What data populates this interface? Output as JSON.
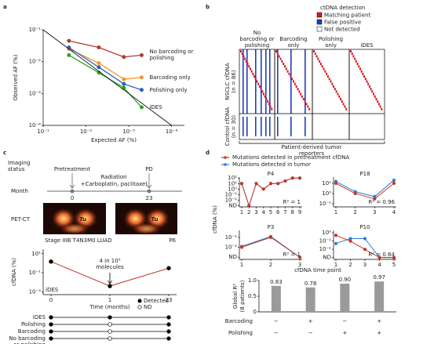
{
  "panel_labels": [
    "a",
    "b",
    "c",
    "d"
  ],
  "chart_data": [
    {
      "type": "line",
      "xlabel": "Expected AF (%)",
      "ylabel": "Observed AF (%)",
      "log_x": true,
      "log_y": true,
      "x": [
        0.025,
        0.005,
        0.0013,
        0.0005
      ],
      "xlim": [
        0.1,
        5e-05
      ],
      "xticks": [
        {
          "value": 0.1,
          "label": "10⁻¹"
        },
        {
          "value": 0.01,
          "label": "10⁻²"
        },
        {
          "value": 0.001,
          "label": "10⁻³"
        },
        {
          "value": 0.0001,
          "label": "10⁻⁴"
        }
      ],
      "ylim": [
        0.0001,
        0.1
      ],
      "yticks": [
        {
          "value": 0.0001,
          "label": "10⁻⁴"
        },
        {
          "value": 0.001,
          "label": "10⁻³"
        },
        {
          "value": 0.01,
          "label": "10⁻²"
        },
        {
          "value": 0.1,
          "label": "10⁻¹"
        }
      ],
      "series": [
        {
          "name": "No barcoding or polishing",
          "color": "#b33a2e",
          "values": [
            0.045,
            0.028,
            0.014,
            0.016
          ]
        },
        {
          "name": "Barcoding only",
          "color": "#f2962f",
          "values": [
            0.025,
            0.009,
            0.0028,
            0.0032
          ]
        },
        {
          "name": "Polishing only",
          "color": "#2a62b8",
          "values": [
            0.028,
            0.0067,
            0.002,
            0.0013
          ]
        },
        {
          "name": "iDES",
          "color": "#2ca02c",
          "values": [
            0.016,
            0.0045,
            0.0015,
            0.00037
          ]
        }
      ]
    },
    {
      "type": "line",
      "ylabel": "cfDNA (%)",
      "xlabel": "Time (months)",
      "log_y": true,
      "categories": [
        "0",
        "1",
        "23"
      ],
      "ylim": [
        0.0005,
        30
      ],
      "yticks": [
        {
          "value": 10,
          "label": "10¹"
        },
        {
          "value": 0.1,
          "label": "10⁻¹"
        },
        {
          "value": 0.001,
          "label": "10⁻³"
        }
      ],
      "series": [
        {
          "name": "iDES",
          "color": "#c0392b",
          "values": [
            1.5,
            0.004,
            0.3
          ]
        }
      ],
      "annotation": "4 in 10⁵ molecules",
      "legend": [
        "Detected",
        "ND"
      ]
    },
    {
      "type": "line",
      "title": "P4",
      "log_y": true,
      "categories": [
        "1",
        "2",
        "3",
        "4",
        "5",
        "6",
        "7",
        "8",
        "9"
      ],
      "ylim": [
        0.0006,
        150
      ],
      "yticks": [
        {
          "value": 100,
          "label": "10²"
        },
        {
          "value": 10,
          "label": "10¹"
        },
        {
          "value": 1,
          "label": "10⁰"
        },
        {
          "value": 0.1,
          "label": "10⁻¹"
        },
        {
          "value": 0.01,
          "label": "10⁻²"
        },
        {
          "value": 0.001,
          "label": "ND"
        }
      ],
      "series": [
        {
          "color": "#2e7bd6",
          "values": [
            10,
            0.001,
            10,
            1,
            10,
            10,
            30,
            100,
            100
          ]
        },
        {
          "color": "#c0392b",
          "values": [
            10,
            0.001,
            10,
            1,
            10,
            10,
            30,
            100,
            100
          ]
        }
      ],
      "annotation": "R² = 1"
    },
    {
      "type": "line",
      "title": "P18",
      "log_y": true,
      "categories": [
        "1",
        "2",
        "3",
        "4"
      ],
      "ylim": [
        0.05,
        40
      ],
      "yticks": [
        {
          "value": 10,
          "label": "10¹"
        },
        {
          "value": 1,
          "label": "10⁰"
        },
        {
          "value": 0.1,
          "label": "10⁻¹"
        }
      ],
      "series": [
        {
          "color": "#2e7bd6",
          "values": [
            15,
            1.5,
            0.5,
            20
          ]
        },
        {
          "color": "#c0392b",
          "values": [
            10,
            1,
            0.3,
            10
          ]
        }
      ],
      "annotation": "R² = 0.96"
    },
    {
      "type": "line",
      "title": "P3",
      "log_y": true,
      "categories": [
        "1",
        "2",
        "3"
      ],
      "ylim": [
        0.0006,
        0.5
      ],
      "yticks": [
        {
          "value": 0.1,
          "label": "10⁻¹"
        },
        {
          "value": 0.01,
          "label": "10⁻²"
        },
        {
          "value": 0.001,
          "label": "ND"
        }
      ],
      "series": [
        {
          "color": "#2e7bd6",
          "values": [
            0.012,
            0.12,
            0.001
          ]
        },
        {
          "color": "#c0392b",
          "values": [
            0.01,
            0.1,
            0.001
          ]
        }
      ],
      "annotation": "R² = 1"
    },
    {
      "type": "line",
      "title": "P10",
      "log_y": true,
      "categories": [
        "1",
        "2",
        "3",
        "4",
        "5"
      ],
      "ylim": [
        0.0006,
        2
      ],
      "yticks": [
        {
          "value": 1,
          "label": "10⁰"
        },
        {
          "value": 0.1,
          "label": "10⁻¹"
        },
        {
          "value": 0.01,
          "label": "10⁻²"
        },
        {
          "value": 0.001,
          "label": "ND"
        }
      ],
      "series": [
        {
          "color": "#2e7bd6",
          "values": [
            0.05,
            0.2,
            0.2,
            0.001,
            0.001
          ]
        },
        {
          "color": "#c0392b",
          "values": [
            0.5,
            0.1,
            0.01,
            0.001,
            0.001
          ]
        }
      ],
      "annotation": "R² = 0.64"
    },
    {
      "type": "bar",
      "ylabel": "Global R²",
      "ylabel_note": "(8 patients)",
      "values": [
        0.83,
        0.78,
        0.9,
        0.97
      ],
      "value_labels": [
        "0.83",
        "0.78",
        "0.90",
        "0.97"
      ],
      "color": "#9a9a9a",
      "ylim": [
        0,
        1
      ],
      "yticks": [
        0,
        0.5,
        {
          "value": 1,
          "label": "1.0"
        }
      ],
      "rows": [
        {
          "label": "Barcoding",
          "marks": [
            "−",
            "+",
            "−",
            "+"
          ]
        },
        {
          "label": "Polishing",
          "marks": [
            "−",
            "−",
            "+",
            "+"
          ]
        }
      ]
    }
  ],
  "panel_b": {
    "legend_title": "ctDNA detection",
    "legend": [
      {
        "label": "Matching patient",
        "color": "#d7191c"
      },
      {
        "label": "False positive",
        "color": "#1f3fbf"
      },
      {
        "label": "Not detected",
        "color": "#ffffff"
      }
    ],
    "columns": [
      "No barcoding or polishing",
      "Barcoding only",
      "Polishing only",
      "iDES"
    ],
    "rows": [
      {
        "label": "NSCLC cfDNA",
        "n": "(n = 86)"
      },
      {
        "label": "Control cfDNA",
        "n": "(n = 30)"
      }
    ],
    "footer": "Patient-derived tumor reporters"
  },
  "panel_c": {
    "imaging_label": "Imaging status",
    "month_label": "Month",
    "pretreatment": "Pretreatment",
    "radiation": "Radiation",
    "chemo": "+Carboplatin, paclitaxel",
    "pd": "PD",
    "months": [
      "0",
      "23"
    ],
    "petct": "PET-CT",
    "tumor_labels": [
      "Tu",
      "Tu"
    ],
    "stage": "Stage IIIB T4N3M0 LUAD",
    "patient": "P6",
    "table": [
      {
        "label": "iDES",
        "detected": [
          true,
          true,
          true
        ]
      },
      {
        "label": "Polishing",
        "detected": [
          true,
          false,
          true
        ]
      },
      {
        "label": "Barcoding",
        "detected": [
          true,
          false,
          true
        ]
      },
      {
        "label": "No barcoding or polishing",
        "detected": [
          true,
          false,
          true
        ]
      }
    ]
  },
  "panel_d": {
    "legend": [
      {
        "name": "Mutations detected in pretreatment cfDNA",
        "color": "#c0392b"
      },
      {
        "name": "Mutations detected in tumor",
        "color": "#2e7bd6"
      }
    ],
    "ylabel": "cfDNA (%)",
    "xlabel": "cfDNA time point"
  }
}
